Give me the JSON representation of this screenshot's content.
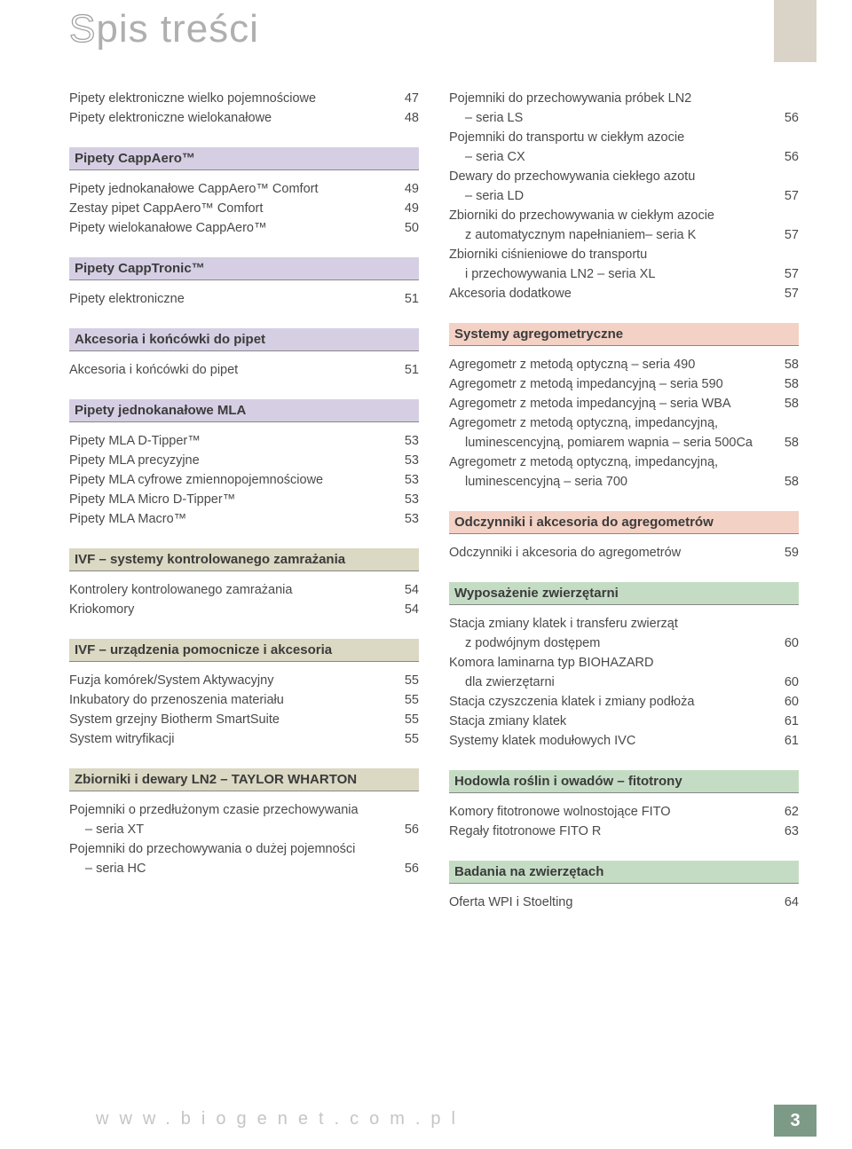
{
  "title_part1": "S",
  "title_part2": "pis treści",
  "footer_url": "www.biogenet.com.pl",
  "page_number": "3",
  "colors": {
    "bar_purple": "#d6cfe3",
    "bar_beige": "#dbd8c3",
    "bar_pink": "#f3d1c4",
    "bar_green": "#c5dcc4",
    "title_outline": "#9e9e9e",
    "title_fill": "#b0afaf",
    "text": "#4a4a4a",
    "pagebox": "#7d9a87"
  },
  "left": [
    {
      "type": "entry",
      "label": "Pipety elektroniczne wielko pojemnościowe",
      "page": "47"
    },
    {
      "type": "entry",
      "label": "Pipety elektroniczne wielokanałowe",
      "page": "48"
    },
    {
      "type": "bar",
      "label": "Pipety CappAero™",
      "color": "bar_purple"
    },
    {
      "type": "entry",
      "label": "Pipety jednokanałowe CappAero™ Comfort",
      "page": "49"
    },
    {
      "type": "entry",
      "label": "Zestay pipet CappAero™ Comfort",
      "page": "49"
    },
    {
      "type": "entry",
      "label": "Pipety wielokanałowe CappAero™",
      "page": "50"
    },
    {
      "type": "bar",
      "label": "Pipety CappTronic™",
      "color": "bar_purple"
    },
    {
      "type": "entry",
      "label": "Pipety elektroniczne",
      "page": "51"
    },
    {
      "type": "bar",
      "label": "Akcesoria i końcówki do pipet",
      "color": "bar_purple"
    },
    {
      "type": "entry",
      "label": "Akcesoria i końcówki do pipet",
      "page": "51"
    },
    {
      "type": "bar",
      "label": "Pipety jednokanałowe MLA",
      "color": "bar_purple"
    },
    {
      "type": "entry",
      "label": "Pipety MLA D-Tipper™",
      "page": "53"
    },
    {
      "type": "entry",
      "label": "Pipety MLA precyzyjne",
      "page": "53"
    },
    {
      "type": "entry",
      "label": "Pipety MLA cyfrowe zmiennopojemnościowe",
      "page": "53"
    },
    {
      "type": "entry",
      "label": "Pipety MLA Micro D-Tipper™",
      "page": "53"
    },
    {
      "type": "entry",
      "label": "Pipety MLA Macro™",
      "page": "53"
    },
    {
      "type": "bar",
      "label": "IVF – systemy kontrolowanego zamrażania",
      "color": "bar_beige"
    },
    {
      "type": "entry",
      "label": "Kontrolery kontrolowanego zamrażania",
      "page": "54"
    },
    {
      "type": "entry",
      "label": "Kriokomory",
      "page": "54"
    },
    {
      "type": "bar",
      "label": "IVF – urządzenia pomocnicze i akcesoria",
      "color": "bar_beige"
    },
    {
      "type": "entry",
      "label": "Fuzja komórek/System Aktywacyjny",
      "page": "55"
    },
    {
      "type": "entry",
      "label": "Inkubatory do przenoszenia materiału",
      "page": "55"
    },
    {
      "type": "entry",
      "label": "System grzejny Biotherm SmartSuite",
      "page": "55"
    },
    {
      "type": "entry",
      "label": "System witryfikacji",
      "page": "55"
    },
    {
      "type": "bar",
      "label": "Zbiorniki i dewary LN2 – TAYLOR WHARTON",
      "color": "bar_beige"
    },
    {
      "type": "entry",
      "label": "Pojemniki o przedłużonym czasie przechowywania",
      "page": ""
    },
    {
      "type": "entry",
      "label": "– seria XT",
      "page": "56",
      "indent": true
    },
    {
      "type": "entry",
      "label": "Pojemniki do przechowywania o dużej pojemności",
      "page": ""
    },
    {
      "type": "entry",
      "label": "– seria HC",
      "page": "56",
      "indent": true
    }
  ],
  "right": [
    {
      "type": "entry",
      "label": "Pojemniki do przechowywania próbek LN2",
      "page": ""
    },
    {
      "type": "entry",
      "label": "– seria LS",
      "page": "56",
      "indent": true
    },
    {
      "type": "entry",
      "label": "Pojemniki do transportu w ciekłym azocie",
      "page": ""
    },
    {
      "type": "entry",
      "label": "– seria CX",
      "page": "56",
      "indent": true
    },
    {
      "type": "entry",
      "label": "Dewary do przechowywania ciekłego azotu",
      "page": ""
    },
    {
      "type": "entry",
      "label": "– seria LD",
      "page": "57",
      "indent": true
    },
    {
      "type": "entry",
      "label": "Zbiorniki do przechowywania w ciekłym azocie",
      "page": ""
    },
    {
      "type": "entry",
      "label": "z automatycznym napełnianiem– seria K",
      "page": "57",
      "indent": true
    },
    {
      "type": "entry",
      "label": "Zbiorniki ciśnieniowe do transportu",
      "page": ""
    },
    {
      "type": "entry",
      "label": "i przechowywania LN2 – seria XL",
      "page": "57",
      "indent": true
    },
    {
      "type": "entry",
      "label": "Akcesoria dodatkowe",
      "page": "57"
    },
    {
      "type": "bar",
      "label": "Systemy agregometryczne",
      "color": "bar_pink"
    },
    {
      "type": "entry",
      "label": "Agregometr z metodą optyczną – seria 490",
      "page": "58"
    },
    {
      "type": "entry",
      "label": "Agregometr z metodą impedancyjną – seria 590",
      "page": "58"
    },
    {
      "type": "entry",
      "label": "Agregometr z metoda impedancyjną – seria WBA",
      "page": "58"
    },
    {
      "type": "entry",
      "label": "Agregometr z metodą optyczną, impedancyjną,",
      "page": ""
    },
    {
      "type": "entry",
      "label": "luminescencyjną, pomiarem wapnia – seria 500Ca",
      "page": "58",
      "indent": true
    },
    {
      "type": "entry",
      "label": "Agregometr z metodą optyczną, impedancyjną,",
      "page": ""
    },
    {
      "type": "entry",
      "label": "luminescencyjną – seria 700",
      "page": "58",
      "indent": true
    },
    {
      "type": "bar",
      "label": "Odczynniki i akcesoria do agregometrów",
      "color": "bar_pink"
    },
    {
      "type": "entry",
      "label": "Odczynniki i akcesoria do agregometrów",
      "page": "59"
    },
    {
      "type": "bar",
      "label": "Wyposażenie zwierzętarni",
      "color": "bar_green"
    },
    {
      "type": "entry",
      "label": "Stacja zmiany klatek i transferu zwierząt",
      "page": ""
    },
    {
      "type": "entry",
      "label": "z podwójnym dostępem",
      "page": "60",
      "indent": true
    },
    {
      "type": "entry",
      "label": "Komora laminarna typ BIOHAZARD",
      "page": ""
    },
    {
      "type": "entry",
      "label": "dla zwierzętarni",
      "page": "60",
      "indent": true
    },
    {
      "type": "entry",
      "label": "Stacja czyszczenia klatek i zmiany podłoża",
      "page": "60"
    },
    {
      "type": "entry",
      "label": "Stacja zmiany klatek",
      "page": "61"
    },
    {
      "type": "entry",
      "label": "Systemy klatek modułowych IVC",
      "page": "61"
    },
    {
      "type": "bar",
      "label": "Hodowla roślin i owadów – fitotrony",
      "color": "bar_green"
    },
    {
      "type": "entry",
      "label": "Komory fitotronowe wolnostojące FITO",
      "page": "62"
    },
    {
      "type": "entry",
      "label": "Regały fitotronowe FITO R",
      "page": "63"
    },
    {
      "type": "bar",
      "label": "Badania na zwierzętach",
      "color": "bar_green"
    },
    {
      "type": "entry",
      "label": "Oferta WPI i Stoelting",
      "page": "64"
    }
  ]
}
